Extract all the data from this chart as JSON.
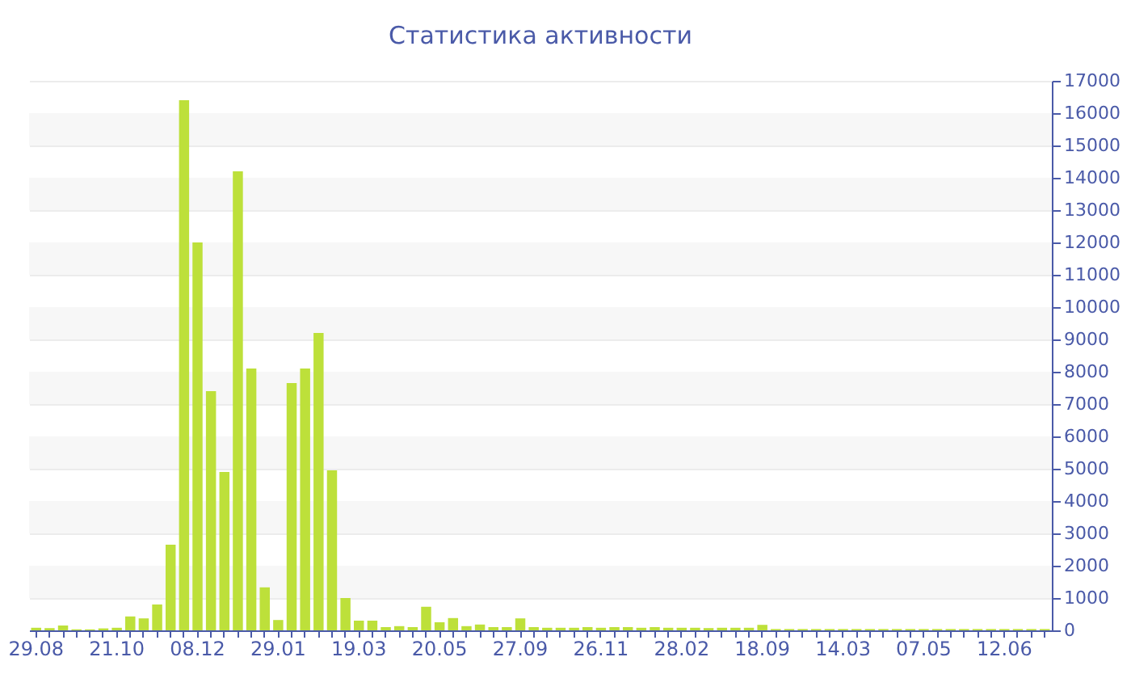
{
  "chart_data": {
    "type": "bar",
    "title": "Статистика активности",
    "color": "#bde03a",
    "categories": [
      "29.08",
      null,
      null,
      null,
      null,
      null,
      "21.10",
      null,
      null,
      null,
      null,
      null,
      "08.12",
      null,
      null,
      null,
      null,
      null,
      "29.01",
      null,
      null,
      null,
      null,
      null,
      "19.03",
      null,
      null,
      null,
      null,
      null,
      "20.05",
      null,
      null,
      null,
      null,
      null,
      "27.09",
      null,
      null,
      null,
      null,
      null,
      "26.11",
      null,
      null,
      null,
      null,
      null,
      "28.02",
      null,
      null,
      null,
      null,
      null,
      "18.09",
      null,
      null,
      null,
      null,
      null,
      "14.03",
      null,
      null,
      null,
      null,
      null,
      "07.05",
      null,
      null,
      null,
      null,
      null,
      "12.06",
      null,
      null,
      null
    ],
    "values": [
      80,
      70,
      150,
      30,
      30,
      60,
      80,
      430,
      370,
      800,
      2650,
      16400,
      12000,
      7400,
      4900,
      14200,
      8100,
      1330,
      320,
      7650,
      8100,
      9200,
      4950,
      1000,
      300,
      300,
      100,
      130,
      100,
      730,
      250,
      380,
      130,
      180,
      100,
      100,
      370,
      100,
      80,
      80,
      80,
      100,
      80,
      100,
      100,
      80,
      100,
      80,
      80,
      80,
      70,
      80,
      80,
      80,
      170,
      40,
      40,
      40,
      40,
      40,
      40,
      40,
      40,
      40,
      40,
      40,
      40,
      40,
      40,
      40,
      40,
      40,
      40,
      40,
      40,
      40
    ],
    "ylim": [
      0,
      17000
    ],
    "yticks": [
      0,
      1000,
      2000,
      3000,
      4000,
      5000,
      6000,
      7000,
      8000,
      9000,
      10000,
      11000,
      12000,
      13000,
      14000,
      15000,
      16000,
      17000
    ],
    "grid": "y"
  }
}
